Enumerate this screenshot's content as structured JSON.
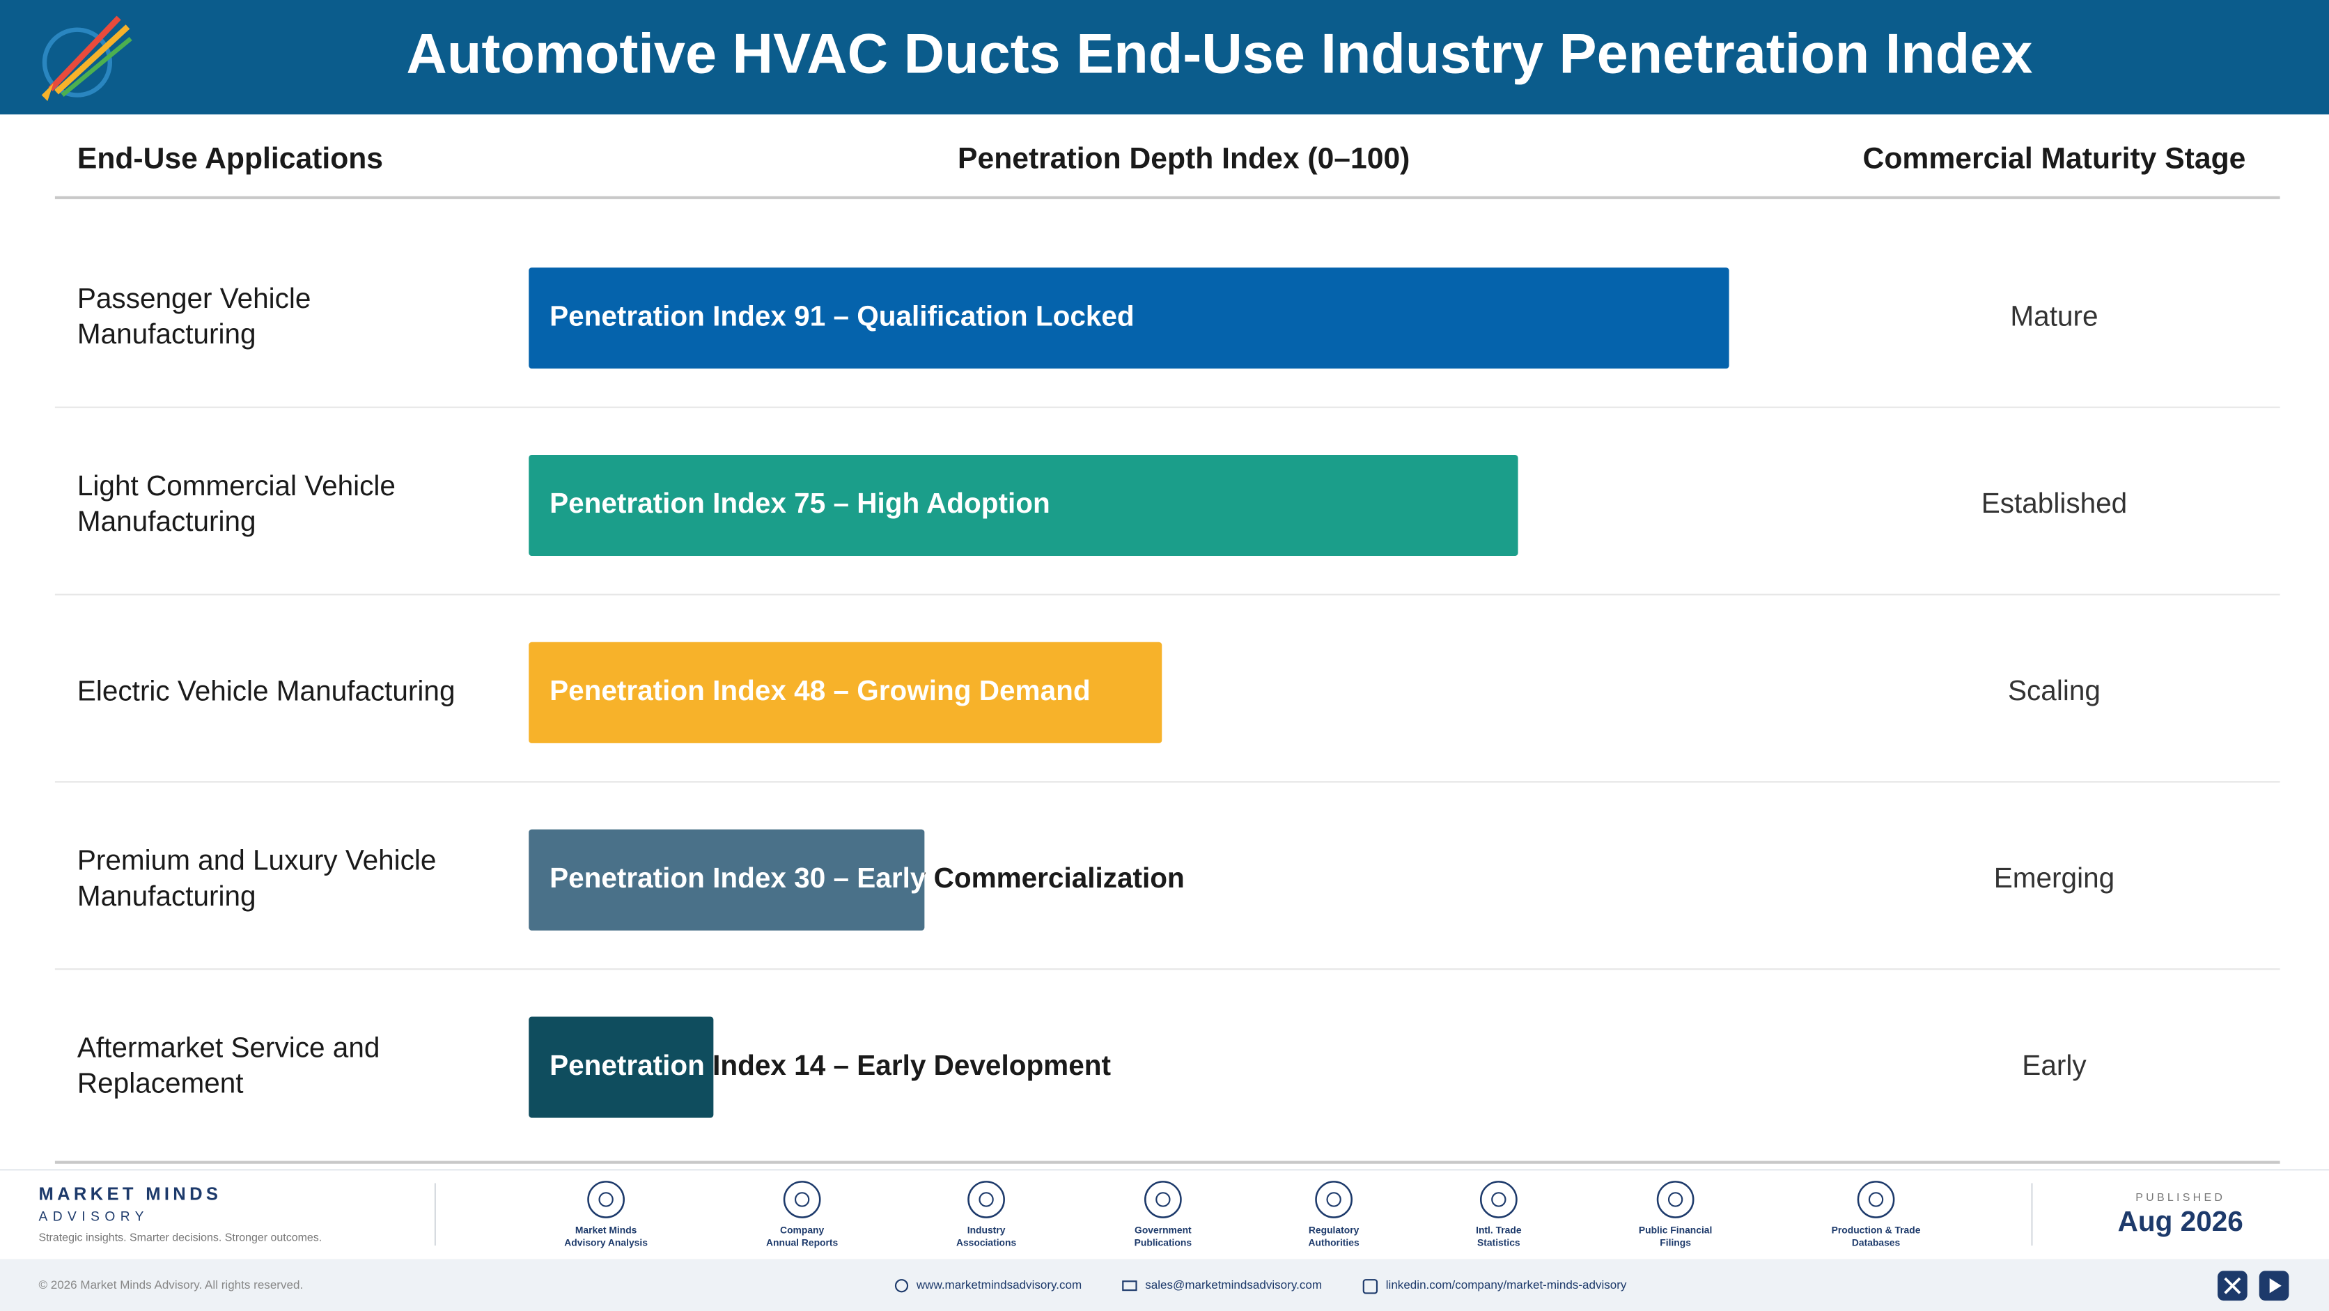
{
  "chart_data": {
    "type": "bar",
    "title": "Automotive HVAC Ducts End-Use Industry Penetration Index",
    "category_header": "End-Use Applications",
    "value_header": "Penetration Depth Index (0–100)",
    "stage_header": "Commercial Maturity Stage",
    "categories": [
      "Passenger Vehicle Manufacturing",
      "Light Commercial Vehicle Manufacturing",
      "Electric Vehicle Manufacturing",
      "Premium and Luxury Vehicle Manufacturing",
      "Aftermarket Service and Replacement"
    ],
    "values": [
      91,
      75,
      48,
      30,
      14
    ],
    "value_labels": [
      "Penetration Index 91 – Qualification Locked",
      "Penetration Index 75 – High Adoption",
      "Penetration Index 48 – Growing Demand",
      "Penetration Index 30 – Early Commercialization",
      "Penetration Index 14 – Early Development"
    ],
    "colors": [
      "#0563ac",
      "#1b9e8a",
      "#f7b22a",
      "#4a7189",
      "#0f4d5e"
    ],
    "stages": [
      "Mature",
      "Established",
      "Scaling",
      "Emerging",
      "Early"
    ],
    "xlim": [
      0,
      100
    ]
  },
  "footer": {
    "brand": "MARKET MINDS",
    "brand_sub": "ADVISORY",
    "tagline": "Strategic insights. Smarter decisions. Stronger outcomes.",
    "sources": [
      [
        "Market Minds",
        "Advisory Analysis"
      ],
      [
        "Company",
        "Annual Reports"
      ],
      [
        "Industry",
        "Associations"
      ],
      [
        "Government",
        "Publications"
      ],
      [
        "Regulatory",
        "Authorities"
      ],
      [
        "Intl. Trade",
        "Statistics"
      ],
      [
        "Public Financial",
        "Filings"
      ],
      [
        "Production & Trade",
        "Databases"
      ]
    ],
    "published_label": "PUBLISHED",
    "published_date": "Aug 2026",
    "copyright": "© 2026 Market Minds Advisory. All rights reserved.",
    "website": "www.marketmindsadvisory.com",
    "email": "sales@marketmindsadvisory.com",
    "linkedin": "linkedin.com/company/market-minds-advisory"
  }
}
